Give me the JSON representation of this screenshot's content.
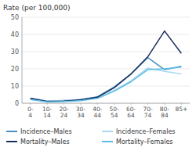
{
  "chart_data": {
    "type": "line",
    "y_label": "Rate (per 100,000)",
    "categories": [
      "0-\n4",
      "10-\n14",
      "20-\n24",
      "30-\n34",
      "40-\n44",
      "50-\n54",
      "60-\n64",
      "70-\n74",
      "80-\n84",
      "85+"
    ],
    "series": [
      {
        "name": "Incidence–Males",
        "color": "#4a90c4",
        "values": [
          3.0,
          1.2,
          1.5,
          2.2,
          3.8,
          9.5,
          17.0,
          26.5,
          19.5,
          21.5
        ]
      },
      {
        "name": "Incidence–Females",
        "color": "#a8d8f0",
        "values": [
          2.5,
          1.0,
          1.8,
          2.0,
          3.2,
          7.5,
          13.0,
          20.5,
          18.5,
          17.0
        ]
      },
      {
        "name": "Mortality–Males",
        "color": "#1a2f5a",
        "values": [
          2.8,
          1.0,
          1.2,
          2.0,
          3.5,
          9.0,
          17.0,
          27.0,
          42.0,
          29.0
        ]
      },
      {
        "name": "Mortality–Females",
        "color": "#5bbde8",
        "values": [
          2.2,
          0.8,
          1.0,
          1.5,
          2.8,
          7.0,
          12.5,
          19.5,
          20.0,
          21.0
        ]
      }
    ],
    "ylim": [
      0,
      50
    ],
    "yticks": [
      0,
      10,
      20,
      30,
      40,
      50
    ],
    "grid": true,
    "legend": "bottom"
  }
}
